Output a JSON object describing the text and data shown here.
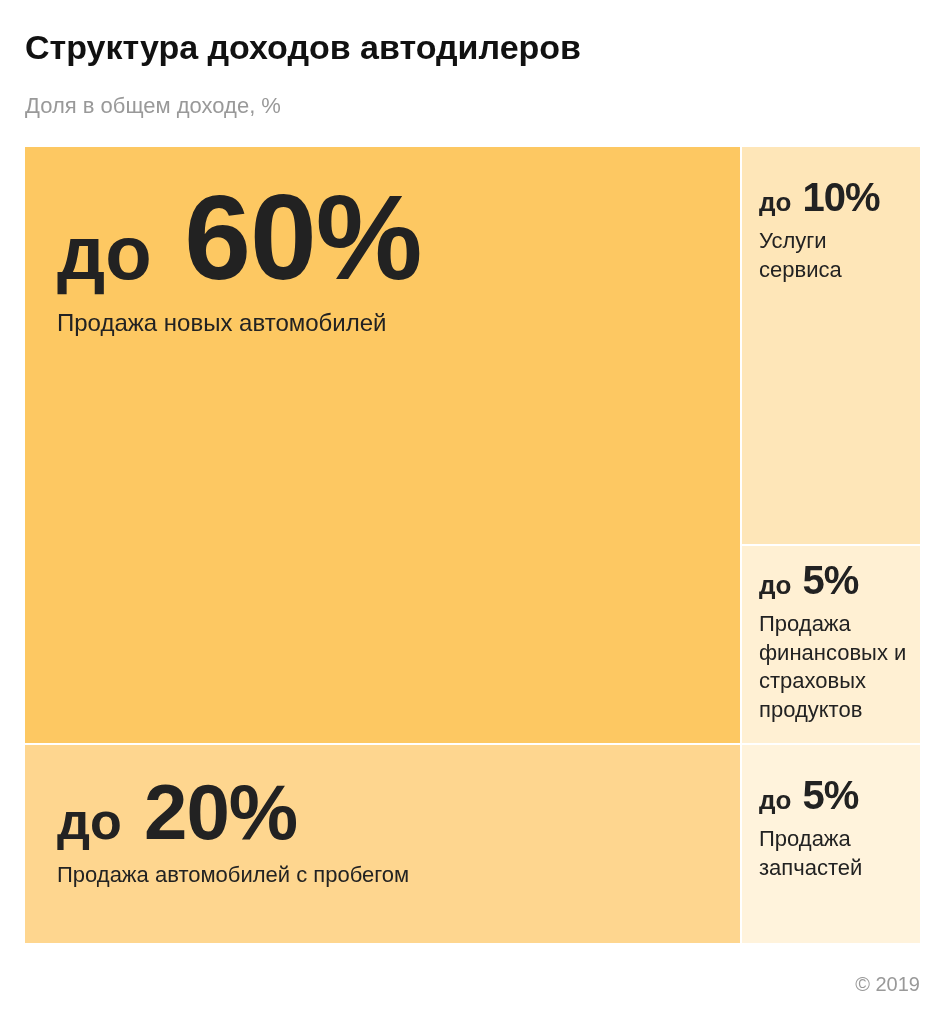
{
  "chart_data": {
    "type": "other",
    "title": "Структура доходов автодилеров",
    "subtitle": "Доля в общем доходе, %",
    "categories": [
      "Продажа новых автомобилей",
      "Продажа автомобилей с пробегом",
      "Услуги сервиса",
      "Продажа финансовых и страховых продуктов",
      "Продажа запчастей"
    ],
    "values": [
      60,
      20,
      10,
      5,
      5
    ],
    "value_labels": [
      "до 60%",
      "до 20%",
      "до 10%",
      "до 5%",
      "до 5%"
    ],
    "colors": [
      "#fdc862",
      "#fed68f",
      "#fee6b8",
      "#fff0d3",
      "#fff3dc"
    ],
    "annotations": [
      "© 2019"
    ]
  }
}
